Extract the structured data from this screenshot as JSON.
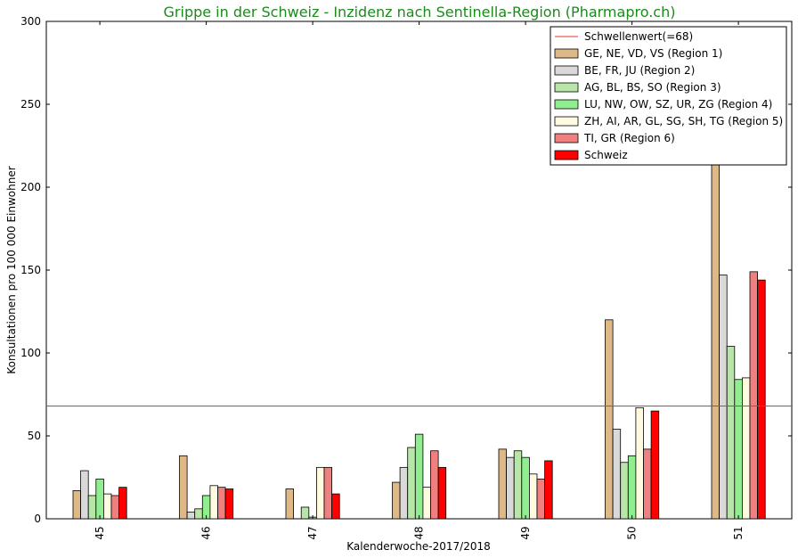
{
  "chart_data": {
    "type": "bar",
    "title": "Grippe in der Schweiz - Inzidenz nach Sentinella-Region (Pharmapro.ch)",
    "xlabel": "Kalenderwoche-2017/2018",
    "ylabel": "Konsultationen pro 100 000 Einwohner",
    "ylim": [
      0,
      300
    ],
    "yticks": [
      "0",
      "50",
      "100",
      "150",
      "200",
      "250",
      "300"
    ],
    "categories": [
      "45",
      "46",
      "47",
      "48",
      "49",
      "50",
      "51"
    ],
    "threshold": {
      "name": "Schwellenwert(=68)",
      "value": 68,
      "color": "#e03a1e"
    },
    "series": [
      {
        "name": "GE, NE, VD, VS (Region 1)",
        "color": "#deb887",
        "values": [
          17,
          38,
          18,
          22,
          42,
          120,
          215
        ]
      },
      {
        "name": "BE, FR, JU (Region 2)",
        "color": "#d9d9d9",
        "values": [
          29,
          4,
          0,
          31,
          37,
          54,
          147
        ]
      },
      {
        "name": "AG, BL, BS, SO (Region 3)",
        "color": "#b8e6a8",
        "values": [
          14,
          6,
          7,
          43,
          41,
          34,
          104
        ]
      },
      {
        "name": "LU, NW, OW, SZ, UR, ZG (Region 4)",
        "color": "#90ee90",
        "values": [
          24,
          14,
          1,
          51,
          37,
          38,
          84
        ]
      },
      {
        "name": "ZH, AI, AR, GL, SG, SH, TG (Region 5)",
        "color": "#fffae0",
        "values": [
          15,
          20,
          31,
          19,
          27,
          67,
          85
        ]
      },
      {
        "name": "TI, GR (Region 6)",
        "color": "#f08080",
        "values": [
          14,
          19,
          31,
          41,
          24,
          42,
          149
        ]
      },
      {
        "name": "Schweiz",
        "color": "#ff0000",
        "values": [
          19,
          18,
          15,
          31,
          35,
          65,
          144
        ]
      }
    ],
    "grid": false,
    "legend_position": "top-right"
  }
}
